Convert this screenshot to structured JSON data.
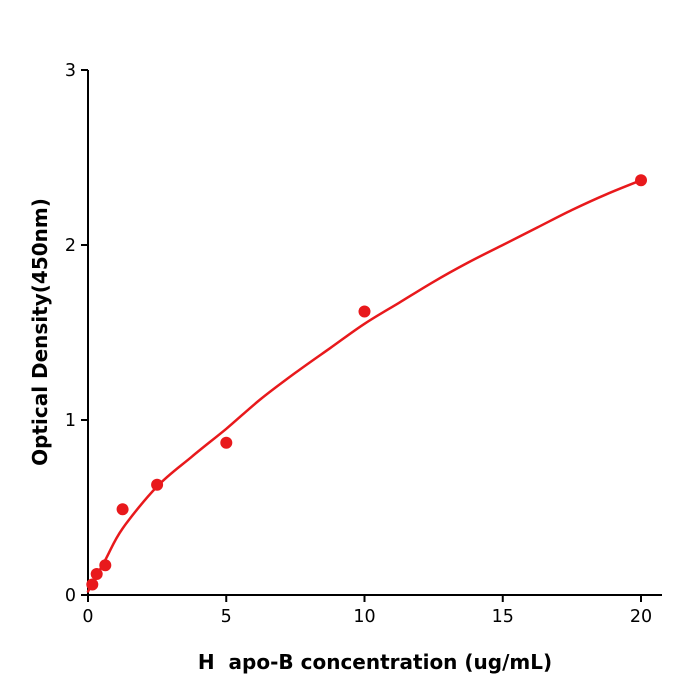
{
  "chart_data": {
    "type": "scatter",
    "title": "",
    "xlabel": "H  apo-B concentration (ug/mL)",
    "ylabel": "Optical Density(450nm)",
    "xlim": [
      0,
      20.8
    ],
    "ylim": [
      0,
      3
    ],
    "x_ticks": [
      0,
      5,
      10,
      15,
      20
    ],
    "y_ticks": [
      0,
      1,
      2,
      3
    ],
    "grid": false,
    "legend": null,
    "marker_color": "#e8191c",
    "curve_color": "#e8191c",
    "axis_color": "#000000",
    "points": {
      "x": [
        0.156,
        0.313,
        0.625,
        1.25,
        2.5,
        5,
        10,
        20
      ],
      "y": [
        0.06,
        0.12,
        0.17,
        0.49,
        0.63,
        0.87,
        1.62,
        2.37
      ]
    },
    "fit_curve": {
      "description": "smooth saturating dose-response fit line read off the figure",
      "x": [
        0,
        0.625,
        1.25,
        2.5,
        3.75,
        5,
        6.25,
        7.5,
        8.75,
        10,
        11.25,
        12.5,
        13.75,
        15,
        16.25,
        17.5,
        18.75,
        20
      ],
      "y": [
        0.02,
        0.2,
        0.38,
        0.62,
        0.79,
        0.95,
        1.12,
        1.27,
        1.41,
        1.55,
        1.67,
        1.79,
        1.9,
        2.0,
        2.1,
        2.2,
        2.29,
        2.37
      ]
    }
  }
}
